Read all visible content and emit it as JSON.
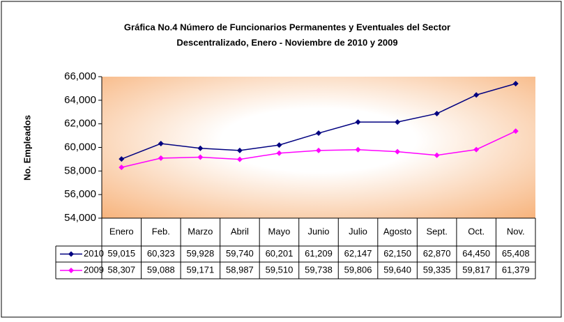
{
  "chart_data": {
    "type": "line",
    "title": "Gráfica No.4 Número de Funcionarios Permanentes y Eventuales del Sector",
    "subtitle": "Descentralizado, Enero - Noviembre de 2010 y 2009",
    "y_label": "No. Empleados",
    "categories": [
      "Enero",
      "Feb.",
      "Marzo",
      "Abril",
      "Mayo",
      "Junio",
      "Julio",
      "Agosto",
      "Sept.",
      "Oct.",
      "Nov."
    ],
    "series": [
      {
        "name": "2010",
        "color": "#000080",
        "values": [
          59015,
          60323,
          59928,
          59740,
          60201,
          61209,
          62147,
          62150,
          62870,
          64450,
          65408
        ],
        "value_labels": [
          "59,015",
          "60,323",
          "59,928",
          "59,740",
          "60,201",
          "61,209",
          "62,147",
          "62,150",
          "62,870",
          "64,450",
          "65,408"
        ]
      },
      {
        "name": "2009",
        "color": "#ff00ff",
        "values": [
          58307,
          59088,
          59171,
          58987,
          59510,
          59738,
          59806,
          59640,
          59335,
          59817,
          61379
        ],
        "value_labels": [
          "58,307",
          "59,088",
          "59,171",
          "58,987",
          "59,510",
          "59,738",
          "59,806",
          "59,640",
          "59,335",
          "59,817",
          "61,379"
        ]
      }
    ],
    "ylim": [
      54000,
      66000
    ],
    "yticks": [
      {
        "value": 54000,
        "label": "54,000"
      },
      {
        "value": 56000,
        "label": "56,000"
      },
      {
        "value": 58000,
        "label": "58,000"
      },
      {
        "value": 60000,
        "label": "60,000"
      },
      {
        "value": 62000,
        "label": "62,000"
      },
      {
        "value": 64000,
        "label": "64,000"
      },
      {
        "value": 66000,
        "label": "66,000"
      }
    ]
  }
}
